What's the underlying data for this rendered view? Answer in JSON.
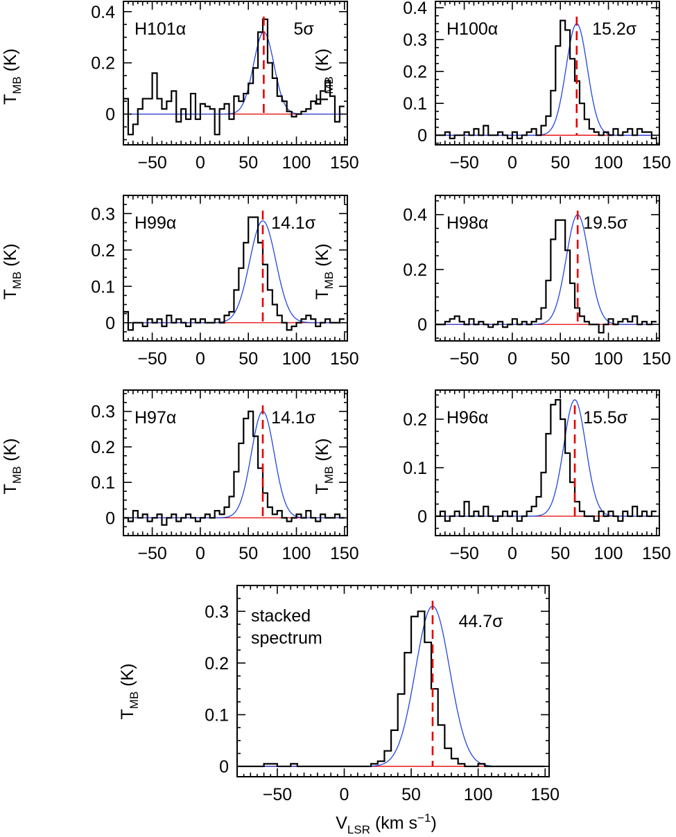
{
  "figure": {
    "y_axis_label": "T_MB (K)",
    "x_axis_label": "V_LSR (km s^-1)",
    "colors": {
      "spectrum": "#000000",
      "fit": "#2244dd",
      "velocity_marker": "#e60000",
      "baseline": "#e60000"
    }
  },
  "chart_data": [
    {
      "type": "line",
      "title": "H101α",
      "significance": "5σ",
      "xlim": [
        -80,
        153
      ],
      "ylim": [
        -0.12,
        0.44
      ],
      "xticks": [
        -50,
        0,
        50,
        100,
        150
      ],
      "yticks": [
        0,
        0.2,
        0.4
      ],
      "ytick_labels": [
        "0",
        "0.2",
        "0.4"
      ],
      "x_start": -80,
      "bin_width": 5,
      "values": [
        0.06,
        -0.08,
        -0.04,
        0.02,
        0.06,
        0.06,
        0.16,
        0.06,
        0.02,
        0.05,
        0.09,
        -0.03,
        0.02,
        -0.02,
        0.08,
        -0.02,
        0.04,
        0.03,
        0.02,
        -0.08,
        0.02,
        0.04,
        -0.02,
        0.07,
        0.05,
        0.08,
        0.12,
        0.18,
        0.32,
        0.37,
        0.2,
        0.14,
        0.07,
        0.05,
        0.01,
        -0.01,
        0.0,
        0.01,
        0.02,
        0.05,
        0.04,
        0.09,
        0.13,
        0.07,
        -0.03,
        0.03
      ],
      "fit": {
        "amplitude": 0.32,
        "center": 66,
        "fwhm": 25
      },
      "vline": 66
    },
    {
      "type": "line",
      "title": "H100α",
      "significance": "15.2σ",
      "xlim": [
        -80,
        153
      ],
      "ylim": [
        -0.03,
        0.42
      ],
      "xticks": [
        -50,
        0,
        50,
        100,
        150
      ],
      "yticks": [
        0,
        0.1,
        0.2,
        0.3,
        0.4
      ],
      "ytick_labels": [
        "0",
        "0.1",
        "0.2",
        "0.3",
        "0.4"
      ],
      "x_start": -80,
      "bin_width": 5,
      "values": [
        0.0,
        0.0,
        0.01,
        -0.01,
        0.0,
        0.0,
        0.01,
        0.0,
        0.02,
        0.0,
        0.03,
        0.0,
        0.0,
        0.01,
        0.0,
        -0.01,
        0.01,
        -0.01,
        0.0,
        0.01,
        0.02,
        0.0,
        0.03,
        0.06,
        0.14,
        0.28,
        0.36,
        0.33,
        0.24,
        0.17,
        0.1,
        0.05,
        0.02,
        0.01,
        0.0,
        0.01,
        0.0,
        0.02,
        0.0,
        0.01,
        0.02,
        0.0,
        0.02,
        0.01,
        0.01,
        -0.01
      ],
      "fit": {
        "amplitude": 0.35,
        "center": 67,
        "fwhm": 26
      },
      "vline": 67
    },
    {
      "type": "line",
      "title": "H99α",
      "significance": "14.1σ",
      "xlim": [
        -80,
        153
      ],
      "ylim": [
        -0.05,
        0.35
      ],
      "xticks": [
        -50,
        0,
        50,
        100,
        150
      ],
      "yticks": [
        0,
        0.1,
        0.2,
        0.3
      ],
      "ytick_labels": [
        "0",
        "0.1",
        "0.2",
        "0.3"
      ],
      "x_start": -80,
      "bin_width": 5,
      "values": [
        0.03,
        -0.02,
        0.0,
        0.0,
        -0.01,
        0.01,
        0.0,
        0.01,
        -0.01,
        0.02,
        0.0,
        0.01,
        0.0,
        -0.01,
        0.01,
        0.0,
        0.01,
        0.0,
        0.0,
        0.01,
        0.0,
        0.02,
        0.03,
        0.09,
        0.15,
        0.22,
        0.29,
        0.29,
        0.22,
        0.16,
        0.09,
        0.05,
        0.02,
        0.0,
        -0.02,
        -0.01,
        0.0,
        0.01,
        0.02,
        0.01,
        -0.01,
        0.0,
        0.01,
        0.0,
        0.0,
        0.01
      ],
      "fit": {
        "amplitude": 0.28,
        "center": 65,
        "fwhm": 32
      },
      "vline": 65
    },
    {
      "type": "line",
      "title": "H98α",
      "significance": "19.5σ",
      "xlim": [
        -80,
        153
      ],
      "ylim": [
        -0.06,
        0.47
      ],
      "xticks": [
        -50,
        0,
        50,
        100,
        150
      ],
      "yticks": [
        0,
        0.2,
        0.4
      ],
      "ytick_labels": [
        "0",
        "0.2",
        "0.4"
      ],
      "x_start": -80,
      "bin_width": 5,
      "values": [
        0.0,
        0.0,
        0.01,
        0.02,
        0.03,
        0.01,
        0.0,
        0.02,
        0.0,
        0.01,
        0.0,
        -0.01,
        0.0,
        0.01,
        -0.01,
        0.0,
        0.02,
        0.0,
        0.01,
        0.0,
        0.01,
        0.02,
        0.06,
        0.16,
        0.31,
        0.38,
        0.38,
        0.27,
        0.15,
        0.06,
        0.03,
        0.01,
        0.0,
        0.0,
        -0.03,
        0.0,
        0.02,
        0.0,
        0.01,
        0.02,
        0.01,
        0.03,
        0.0,
        0.01,
        0.0,
        0.01
      ],
      "fit": {
        "amplitude": 0.4,
        "center": 68,
        "fwhm": 28
      },
      "vline": 68
    },
    {
      "type": "line",
      "title": "H97α",
      "significance": "14.1σ",
      "xlim": [
        -80,
        153
      ],
      "ylim": [
        -0.05,
        0.36
      ],
      "xticks": [
        -50,
        0,
        50,
        100,
        150
      ],
      "yticks": [
        0,
        0.1,
        0.2,
        0.3
      ],
      "ytick_labels": [
        "0",
        "0.1",
        "0.2",
        "0.3"
      ],
      "x_start": -80,
      "bin_width": 5,
      "values": [
        0.0,
        -0.01,
        0.02,
        0.0,
        0.01,
        -0.01,
        0.0,
        0.01,
        -0.02,
        0.0,
        0.01,
        -0.01,
        0.0,
        0.01,
        0.0,
        -0.01,
        0.0,
        0.01,
        0.0,
        0.02,
        0.01,
        0.03,
        0.06,
        0.13,
        0.21,
        0.28,
        0.3,
        0.23,
        0.14,
        0.07,
        0.03,
        0.01,
        0.02,
        0.0,
        -0.01,
        0.0,
        0.01,
        0.0,
        0.02,
        0.0,
        -0.01,
        0.01,
        0.0,
        0.0,
        0.01,
        0.0
      ],
      "fit": {
        "amplitude": 0.3,
        "center": 65,
        "fwhm": 28
      },
      "vline": 65
    },
    {
      "type": "line",
      "title": "H96α",
      "significance": "15.5σ",
      "xlim": [
        -80,
        153
      ],
      "ylim": [
        -0.04,
        0.26
      ],
      "xticks": [
        -50,
        0,
        50,
        100,
        150
      ],
      "yticks": [
        0,
        0.1,
        0.2
      ],
      "ytick_labels": [
        "0",
        "0.1",
        "0.2"
      ],
      "x_start": -80,
      "bin_width": 5,
      "values": [
        0.0,
        0.01,
        -0.01,
        0.0,
        0.01,
        0.0,
        0.03,
        0.0,
        0.01,
        0.0,
        0.02,
        0.0,
        -0.01,
        0.0,
        0.01,
        0.0,
        0.01,
        -0.01,
        0.0,
        0.01,
        0.02,
        0.04,
        0.09,
        0.17,
        0.23,
        0.24,
        0.2,
        0.13,
        0.07,
        0.03,
        0.01,
        0.0,
        0.0,
        -0.01,
        0.01,
        0.0,
        0.01,
        0.0,
        -0.01,
        0.01,
        0.0,
        0.02,
        0.0,
        0.01,
        0.0,
        0.01
      ],
      "fit": {
        "amplitude": 0.24,
        "center": 65,
        "fwhm": 27
      },
      "vline": 65
    },
    {
      "type": "line",
      "title": "stacked spectrum",
      "title_lines": [
        "stacked",
        "spectrum"
      ],
      "significance": "44.7σ",
      "xlim": [
        -80,
        153
      ],
      "ylim": [
        -0.02,
        0.35
      ],
      "xticks": [
        -50,
        0,
        50,
        100,
        150
      ],
      "yticks": [
        0,
        0.1,
        0.2,
        0.3
      ],
      "ytick_labels": [
        "0",
        "0.1",
        "0.2",
        "0.3"
      ],
      "x_start": -80,
      "bin_width": 5,
      "values": [
        0.0,
        0.0,
        0.0,
        0.0,
        0.005,
        0.005,
        0.0,
        0.0,
        0.005,
        0.0,
        0.0,
        0.0,
        0.0,
        0.0,
        0.0,
        0.0,
        0.0,
        0.0,
        0.0,
        0.0,
        0.005,
        0.01,
        0.03,
        0.07,
        0.14,
        0.22,
        0.29,
        0.3,
        0.24,
        0.15,
        0.08,
        0.035,
        0.015,
        0.005,
        0.0,
        0.0,
        0.005,
        0.0,
        0.0,
        0.0,
        0.0,
        0.0,
        0.0,
        0.0,
        0.0,
        0.0
      ],
      "fit": {
        "amplitude": 0.31,
        "center": 66,
        "fwhm": 30
      },
      "vline": 66
    }
  ]
}
